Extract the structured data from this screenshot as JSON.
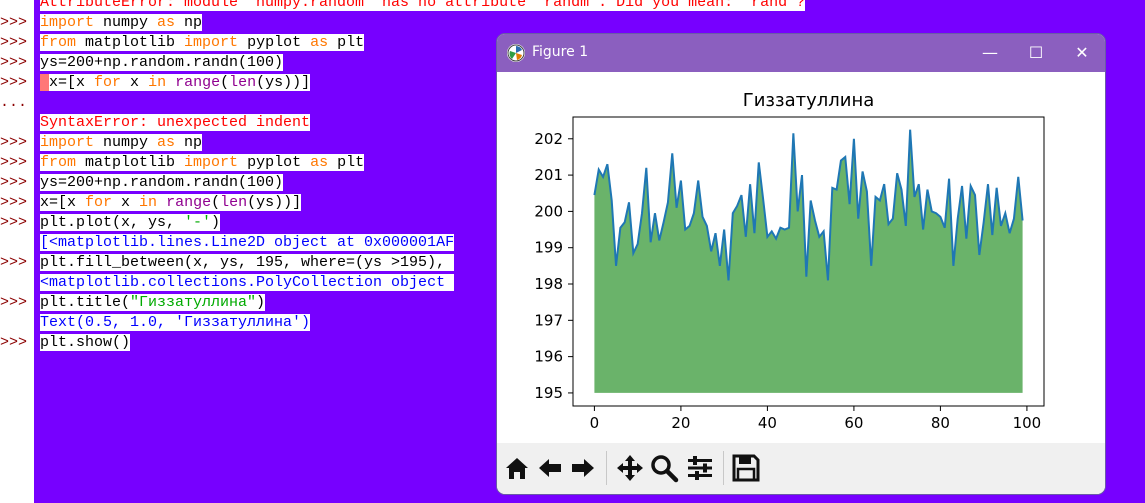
{
  "console": {
    "lines": [
      {
        "prompt": "",
        "segments": [
          {
            "text": "AttributeError: module 'numpy.random' has no attribute 'randm'. Did you mean: 'rand'?",
            "cls": "err"
          }
        ]
      },
      {
        "prompt": ">>>",
        "segments": [
          {
            "text": "import",
            "cls": "kw"
          },
          {
            "text": " numpy ",
            "cls": "code"
          },
          {
            "text": "as",
            "cls": "kw"
          },
          {
            "text": " np",
            "cls": "code"
          }
        ]
      },
      {
        "prompt": ">>>",
        "segments": [
          {
            "text": "from",
            "cls": "kw"
          },
          {
            "text": " matplotlib ",
            "cls": "code"
          },
          {
            "text": "import",
            "cls": "kw"
          },
          {
            "text": " pyplot ",
            "cls": "code"
          },
          {
            "text": "as",
            "cls": "kw"
          },
          {
            "text": " plt",
            "cls": "code"
          }
        ]
      },
      {
        "prompt": ">>>",
        "segments": [
          {
            "text": "ys=200+np.random.randn(100)",
            "cls": "code"
          }
        ]
      },
      {
        "prompt": ">>>",
        "segments": [
          {
            "text": " ",
            "cls": "cursor"
          },
          {
            "text": "x=[x ",
            "cls": "code"
          },
          {
            "text": "for",
            "cls": "kw"
          },
          {
            "text": " x ",
            "cls": "code"
          },
          {
            "text": "in",
            "cls": "kw"
          },
          {
            "text": " ",
            "cls": "code"
          },
          {
            "text": "range",
            "cls": "bi"
          },
          {
            "text": "(",
            "cls": "code"
          },
          {
            "text": "len",
            "cls": "bi"
          },
          {
            "text": "(ys))]",
            "cls": "code"
          }
        ]
      },
      {
        "prompt": "...",
        "segments": []
      },
      {
        "prompt": "",
        "segments": [
          {
            "text": "SyntaxError: unexpected indent",
            "cls": "err"
          }
        ]
      },
      {
        "prompt": ">>>",
        "segments": [
          {
            "text": "import",
            "cls": "kw"
          },
          {
            "text": " numpy ",
            "cls": "code"
          },
          {
            "text": "as",
            "cls": "kw"
          },
          {
            "text": " np",
            "cls": "code"
          }
        ]
      },
      {
        "prompt": ">>>",
        "segments": [
          {
            "text": "from",
            "cls": "kw"
          },
          {
            "text": " matplotlib ",
            "cls": "code"
          },
          {
            "text": "import",
            "cls": "kw"
          },
          {
            "text": " pyplot ",
            "cls": "code"
          },
          {
            "text": "as",
            "cls": "kw"
          },
          {
            "text": " plt",
            "cls": "code"
          }
        ]
      },
      {
        "prompt": ">>>",
        "segments": [
          {
            "text": "ys=200+np.random.randn(100)",
            "cls": "code"
          }
        ]
      },
      {
        "prompt": ">>>",
        "segments": [
          {
            "text": "x=[x ",
            "cls": "code"
          },
          {
            "text": "for",
            "cls": "kw"
          },
          {
            "text": " x ",
            "cls": "code"
          },
          {
            "text": "in",
            "cls": "kw"
          },
          {
            "text": " ",
            "cls": "code"
          },
          {
            "text": "range",
            "cls": "bi"
          },
          {
            "text": "(",
            "cls": "code"
          },
          {
            "text": "len",
            "cls": "bi"
          },
          {
            "text": "(ys))]",
            "cls": "code"
          }
        ]
      },
      {
        "prompt": ">>>",
        "segments": [
          {
            "text": "plt.plot(x, ys, ",
            "cls": "code"
          },
          {
            "text": "'-'",
            "cls": "str"
          },
          {
            "text": ")",
            "cls": "code"
          }
        ]
      },
      {
        "prompt": "",
        "segments": [
          {
            "text": "[<matplotlib.lines.Line2D object at 0x000001AF",
            "cls": "out"
          }
        ]
      },
      {
        "prompt": ">>>",
        "segments": [
          {
            "text": "plt.fill_between(x, ys, 195, where=(ys >195), ",
            "cls": "code"
          }
        ]
      },
      {
        "prompt": "",
        "segments": [
          {
            "text": "<matplotlib.collections.PolyCollection object ",
            "cls": "out"
          }
        ]
      },
      {
        "prompt": ">>>",
        "segments": [
          {
            "text": "plt.title(",
            "cls": "code"
          },
          {
            "text": "\"Гиззатуллина\"",
            "cls": "str"
          },
          {
            "text": ")",
            "cls": "code"
          }
        ]
      },
      {
        "prompt": "",
        "segments": [
          {
            "text": "Text(0.5, 1.0, 'Гиззатуллина')",
            "cls": "out"
          }
        ]
      },
      {
        "prompt": ">>>",
        "segments": [
          {
            "text": "plt.show()",
            "cls": "code"
          }
        ]
      }
    ]
  },
  "figure_window": {
    "title": "Figure 1",
    "minimize_glyph": "—",
    "maximize_glyph": "☐",
    "close_glyph": "✕",
    "toolbar": [
      "home-icon",
      "back-icon",
      "forward-icon",
      "pan-icon",
      "zoom-icon",
      "configure-icon",
      "save-icon"
    ]
  },
  "chart_data": {
    "type": "area",
    "title": "Гиззатуллина",
    "xlabel": "",
    "ylabel": "",
    "xlim": [
      -4.95,
      103.95
    ],
    "ylim": [
      194.64,
      202.6
    ],
    "xticks": [
      0,
      20,
      40,
      60,
      80,
      100
    ],
    "yticks": [
      195,
      196,
      197,
      198,
      199,
      200,
      201,
      202
    ],
    "fill_baseline": 195,
    "line_color": "#1f77b4",
    "fill_color": "#6ab36a",
    "grid": false,
    "x": [
      0,
      1,
      2,
      3,
      4,
      5,
      6,
      7,
      8,
      9,
      10,
      11,
      12,
      13,
      14,
      15,
      16,
      17,
      18,
      19,
      20,
      21,
      22,
      23,
      24,
      25,
      26,
      27,
      28,
      29,
      30,
      31,
      32,
      33,
      34,
      35,
      36,
      37,
      38,
      39,
      40,
      41,
      42,
      43,
      44,
      45,
      46,
      47,
      48,
      49,
      50,
      51,
      52,
      53,
      54,
      55,
      56,
      57,
      58,
      59,
      60,
      61,
      62,
      63,
      64,
      65,
      66,
      67,
      68,
      69,
      70,
      71,
      72,
      73,
      74,
      75,
      76,
      77,
      78,
      79,
      80,
      81,
      82,
      83,
      84,
      85,
      86,
      87,
      88,
      89,
      90,
      91,
      92,
      93,
      94,
      95,
      96,
      97,
      98,
      99
    ],
    "y": [
      200.45,
      201.15,
      200.95,
      201.3,
      200.3,
      198.5,
      199.55,
      199.7,
      200.25,
      198.85,
      199.1,
      199.95,
      201.2,
      199.15,
      199.95,
      199.2,
      199.7,
      200.25,
      201.6,
      200.1,
      200.85,
      199.5,
      199.6,
      199.95,
      200.85,
      199.85,
      199.6,
      198.9,
      199.4,
      198.5,
      199.5,
      198.1,
      199.95,
      200.15,
      200.45,
      199.3,
      200.75,
      199.4,
      201.35,
      200.35,
      199.3,
      199.45,
      199.25,
      199.55,
      199.5,
      199.55,
      202.15,
      200.0,
      201.0,
      198.2,
      200.3,
      199.75,
      199.3,
      199.45,
      198.1,
      200.65,
      200.6,
      201.4,
      201.5,
      200.2,
      202.0,
      199.8,
      201.1,
      200.55,
      198.5,
      200.4,
      200.3,
      200.75,
      199.65,
      199.8,
      201.05,
      200.6,
      199.6,
      202.25,
      200.4,
      200.75,
      199.5,
      200.6,
      200.0,
      199.95,
      199.85,
      199.55,
      200.9,
      198.5,
      199.8,
      200.7,
      199.25,
      200.7,
      200.45,
      198.8,
      199.7,
      200.75,
      199.35,
      200.65,
      199.6,
      199.95,
      199.4,
      199.8,
      200.95,
      199.75
    ]
  }
}
